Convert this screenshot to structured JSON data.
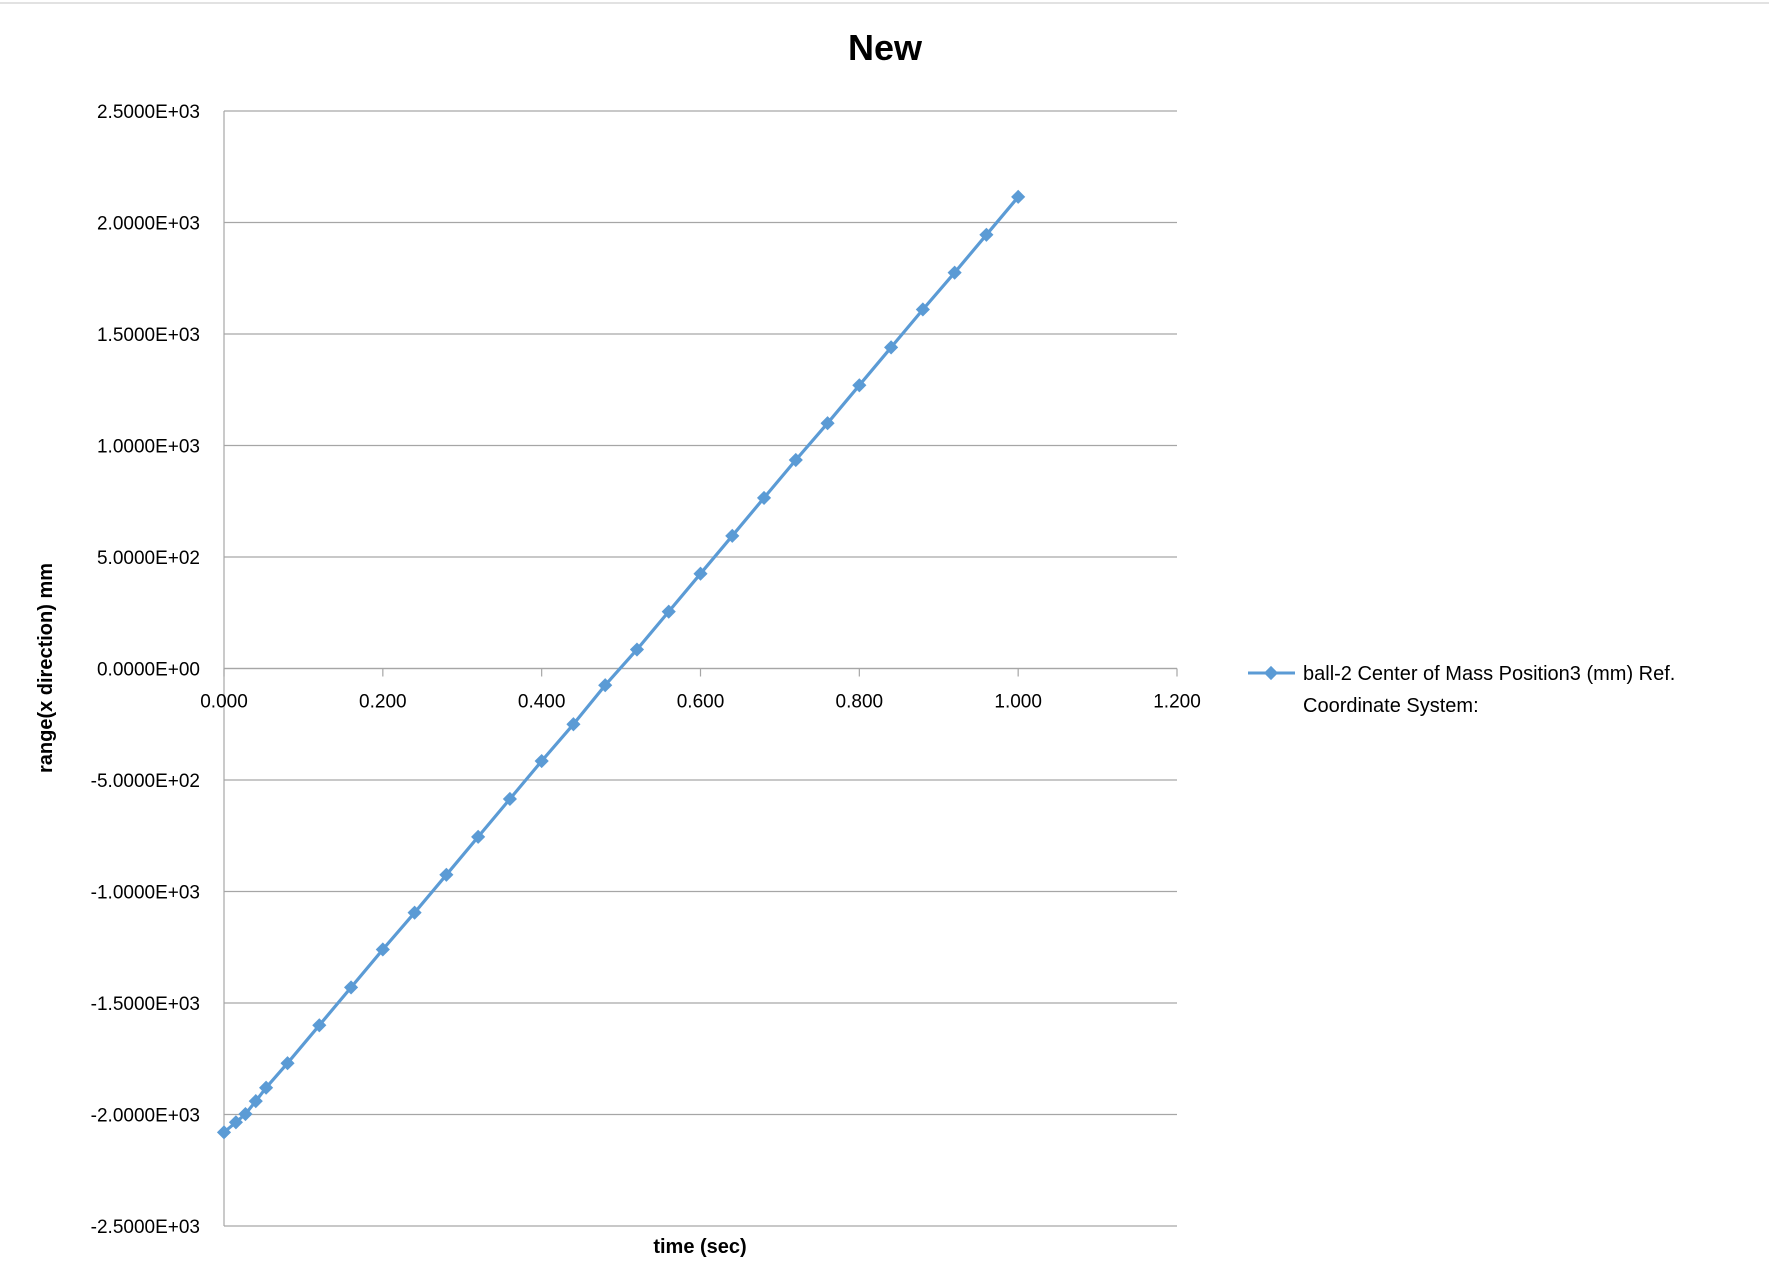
{
  "chart_data": {
    "type": "scatter",
    "title": "New",
    "xlabel": "time (sec)",
    "ylabel": "range(x direction) mm",
    "xlim": [
      0,
      1.2
    ],
    "ylim": [
      -2500,
      2500
    ],
    "x_ticks": [
      "0.000",
      "0.200",
      "0.400",
      "0.600",
      "0.800",
      "1.000",
      "1.200"
    ],
    "y_ticks": [
      "2.5000E+03",
      "2.0000E+03",
      "1.5000E+03",
      "1.0000E+03",
      "5.0000E+02",
      "0.0000E+00",
      "-5.0000E+02",
      "-1.0000E+03",
      "-1.5000E+03",
      "-2.0000E+03",
      "-2.5000E+03"
    ],
    "grid": "horizontal",
    "legend_position": "right",
    "series_color": "#5B9BD5",
    "marker": "diamond",
    "series": [
      {
        "name": "ball-2 Center of Mass Position3 (mm) Ref. Coordinate System:",
        "legend_lines": [
          "ball-2 Center of Mass Position3 (mm) Ref.",
          "Coordinate System:"
        ],
        "x": [
          0.0,
          0.015,
          0.027,
          0.04,
          0.053,
          0.08,
          0.12,
          0.16,
          0.2,
          0.24,
          0.28,
          0.32,
          0.36,
          0.4,
          0.44,
          0.48,
          0.52,
          0.56,
          0.6,
          0.64,
          0.68,
          0.72,
          0.76,
          0.8,
          0.84,
          0.88,
          0.92,
          0.96,
          1.0
        ],
        "y": [
          -2080,
          -2035,
          -1998,
          -1940,
          -1880,
          -1770,
          -1600,
          -1430,
          -1260,
          -1095,
          -925,
          -755,
          -585,
          -415,
          -250,
          -75,
          85,
          255,
          425,
          595,
          765,
          935,
          1100,
          1270,
          1440,
          1610,
          1775,
          1945,
          2115
        ]
      }
    ]
  }
}
